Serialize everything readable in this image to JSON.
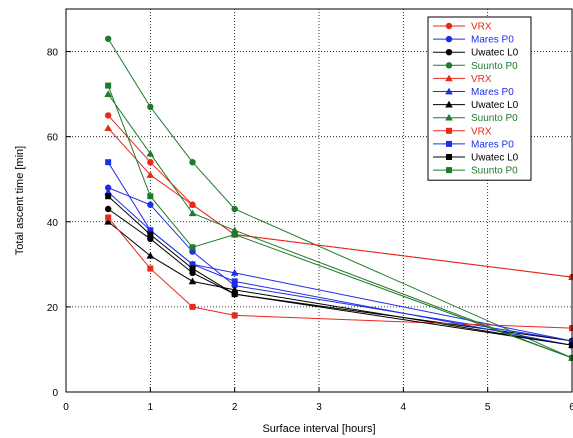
{
  "chart_data": {
    "type": "line",
    "title": "",
    "xlabel": "Surface interval [hours]",
    "ylabel": "Total ascent time [min]",
    "xlim": [
      0,
      6
    ],
    "ylim": [
      0,
      90
    ],
    "xticks": [
      "0",
      "1",
      "2",
      "3",
      "4",
      "5",
      "6"
    ],
    "yticks": [
      "0",
      "20",
      "40",
      "60",
      "80"
    ],
    "grid": true,
    "legend_position": "top-right",
    "series": [
      {
        "name": "VRX",
        "color": "#e8291c",
        "marker": "circle",
        "x": [
          0.5,
          1,
          1.5,
          2,
          6
        ],
        "y": [
          65,
          54,
          44,
          37,
          27
        ]
      },
      {
        "name": "Mares P0",
        "color": "#1c2ee8",
        "marker": "circle",
        "x": [
          0.5,
          1,
          1.5,
          2,
          6
        ],
        "y": [
          48,
          44,
          33,
          25,
          12
        ]
      },
      {
        "name": "Uwatec L0",
        "color": "#000000",
        "marker": "circle",
        "x": [
          0.5,
          1,
          1.5,
          2,
          6
        ],
        "y": [
          43,
          36,
          28,
          23,
          12
        ]
      },
      {
        "name": "Suunto P0",
        "color": "#1e7a2c",
        "marker": "circle",
        "x": [
          0.5,
          1,
          1.5,
          2,
          6
        ],
        "y": [
          83,
          67,
          54,
          43,
          8
        ]
      },
      {
        "name": "VRX",
        "color": "#e8291c",
        "marker": "triangle",
        "x": [
          0.5,
          1,
          1.5,
          2,
          6
        ],
        "y": [
          62,
          51,
          44,
          37,
          27
        ]
      },
      {
        "name": "Mares P0",
        "color": "#1c2ee8",
        "marker": "triangle",
        "x": [
          0.5,
          1,
          1.5,
          2,
          6
        ],
        "y": [
          47,
          38,
          30,
          28,
          12
        ]
      },
      {
        "name": "Uwatec L0",
        "color": "#000000",
        "marker": "triangle",
        "x": [
          0.5,
          1,
          1.5,
          2,
          6
        ],
        "y": [
          40,
          32,
          26,
          24,
          11
        ]
      },
      {
        "name": "Suunto P0",
        "color": "#1e7a2c",
        "marker": "triangle",
        "x": [
          0.5,
          1,
          1.5,
          2,
          6
        ],
        "y": [
          70,
          56,
          42,
          38,
          8
        ]
      },
      {
        "name": "VRX",
        "color": "#e8291c",
        "marker": "square",
        "x": [
          0.5,
          1,
          1.5,
          2,
          6
        ],
        "y": [
          41,
          29,
          20,
          18,
          15
        ]
      },
      {
        "name": "Mares P0",
        "color": "#1c2ee8",
        "marker": "square",
        "x": [
          0.5,
          1,
          1.5,
          2,
          6
        ],
        "y": [
          54,
          38,
          30,
          26,
          11
        ]
      },
      {
        "name": "Uwatec L0",
        "color": "#000000",
        "marker": "square",
        "x": [
          0.5,
          1,
          1.5,
          2,
          6
        ],
        "y": [
          46,
          37,
          29,
          23,
          11
        ]
      },
      {
        "name": "Suunto P0",
        "color": "#1e7a2c",
        "marker": "square",
        "x": [
          0.5,
          1,
          1.5,
          2,
          6
        ],
        "y": [
          72,
          46,
          34,
          37,
          8
        ]
      }
    ]
  }
}
